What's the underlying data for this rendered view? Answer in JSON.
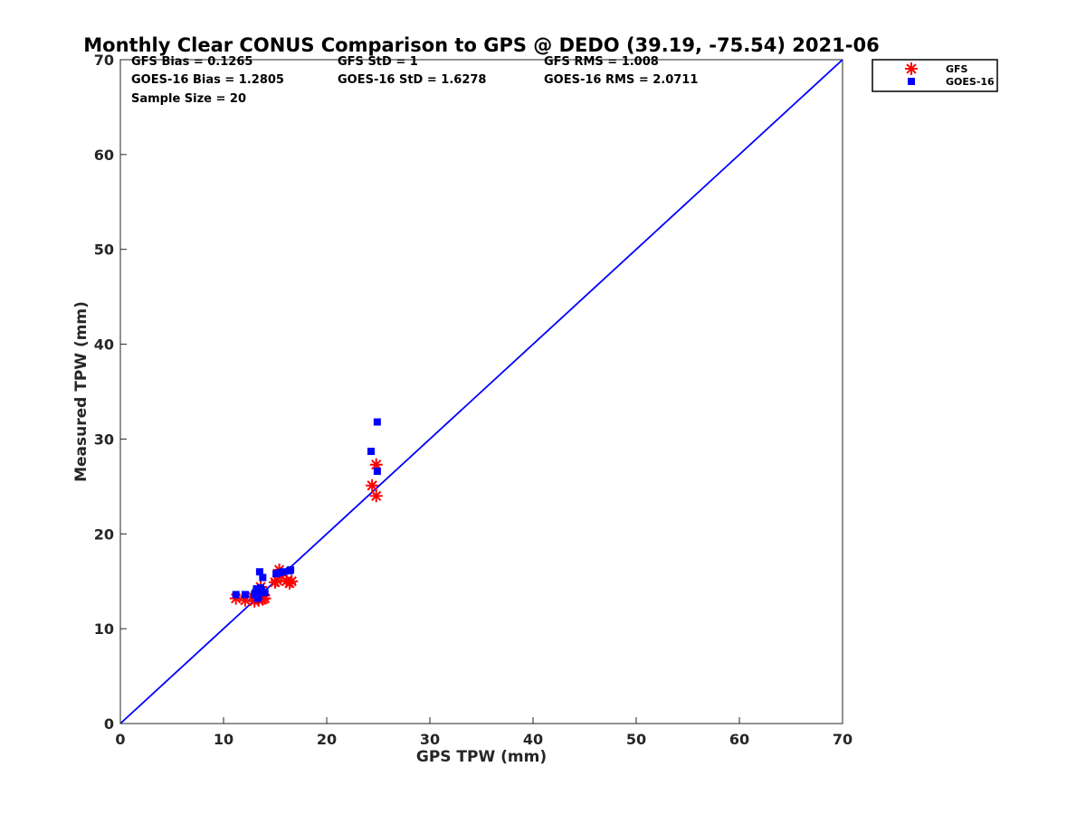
{
  "chart_data": {
    "type": "scatter",
    "title": "Monthly Clear CONUS Comparison to GPS @ DEDO (39.19, -75.54) 2021-06",
    "xlabel": "GPS TPW (mm)",
    "ylabel": "Measured TPW (mm)",
    "xlim": [
      0,
      70
    ],
    "ylim": [
      0,
      70
    ],
    "xticks": [
      "0",
      "10",
      "20",
      "30",
      "40",
      "50",
      "60",
      "70"
    ],
    "yticks": [
      "0",
      "10",
      "20",
      "30",
      "40",
      "50",
      "60",
      "70"
    ],
    "grid": false,
    "legend_position": "top-right, outside plot",
    "stats": [
      [
        "GFS Bias = 0.1265",
        "GFS StD = 1",
        "GFS RMS = 1.008"
      ],
      [
        "GOES-16 Bias = 1.2805",
        "GOES-16 StD = 1.6278",
        "GOES-16 RMS = 2.0711"
      ],
      [
        "Sample Size = 20"
      ]
    ],
    "reference_line": {
      "x": [
        0,
        70
      ],
      "y": [
        0,
        70
      ],
      "color": "#0000ff"
    },
    "series": [
      {
        "name": "GFS",
        "marker": "asterisk",
        "color": "#ff0000",
        "points": [
          [
            11.2,
            13.2
          ],
          [
            12.1,
            13.0
          ],
          [
            13.0,
            12.9
          ],
          [
            13.3,
            13.3
          ],
          [
            13.6,
            14.4
          ],
          [
            13.8,
            13.1
          ],
          [
            14.0,
            13.2
          ],
          [
            15.0,
            14.9
          ],
          [
            15.4,
            16.2
          ],
          [
            15.6,
            15.6
          ],
          [
            16.1,
            15.0
          ],
          [
            16.4,
            14.8
          ],
          [
            16.6,
            15.0
          ],
          [
            13.4,
            13.0
          ],
          [
            12.8,
            13.4
          ],
          [
            15.2,
            15.1
          ],
          [
            24.4,
            25.1
          ],
          [
            24.8,
            27.3
          ],
          [
            24.8,
            24.0
          ],
          [
            13.9,
            13.5
          ]
        ]
      },
      {
        "name": "GOES-16",
        "marker": "square",
        "color": "#0000ff",
        "points": [
          [
            11.2,
            13.6
          ],
          [
            12.1,
            13.6
          ],
          [
            13.1,
            13.8
          ],
          [
            13.2,
            14.2
          ],
          [
            13.4,
            13.4
          ],
          [
            13.5,
            16.0
          ],
          [
            13.8,
            15.4
          ],
          [
            13.7,
            14.0
          ],
          [
            14.0,
            13.8
          ],
          [
            15.1,
            15.8
          ],
          [
            15.4,
            15.9
          ],
          [
            15.8,
            16.0
          ],
          [
            16.4,
            16.1
          ],
          [
            16.5,
            16.2
          ],
          [
            13.3,
            13.2
          ],
          [
            13.0,
            13.6
          ],
          [
            24.3,
            28.7
          ],
          [
            24.9,
            31.8
          ],
          [
            24.9,
            26.6
          ],
          [
            13.6,
            14.3
          ]
        ]
      }
    ]
  }
}
